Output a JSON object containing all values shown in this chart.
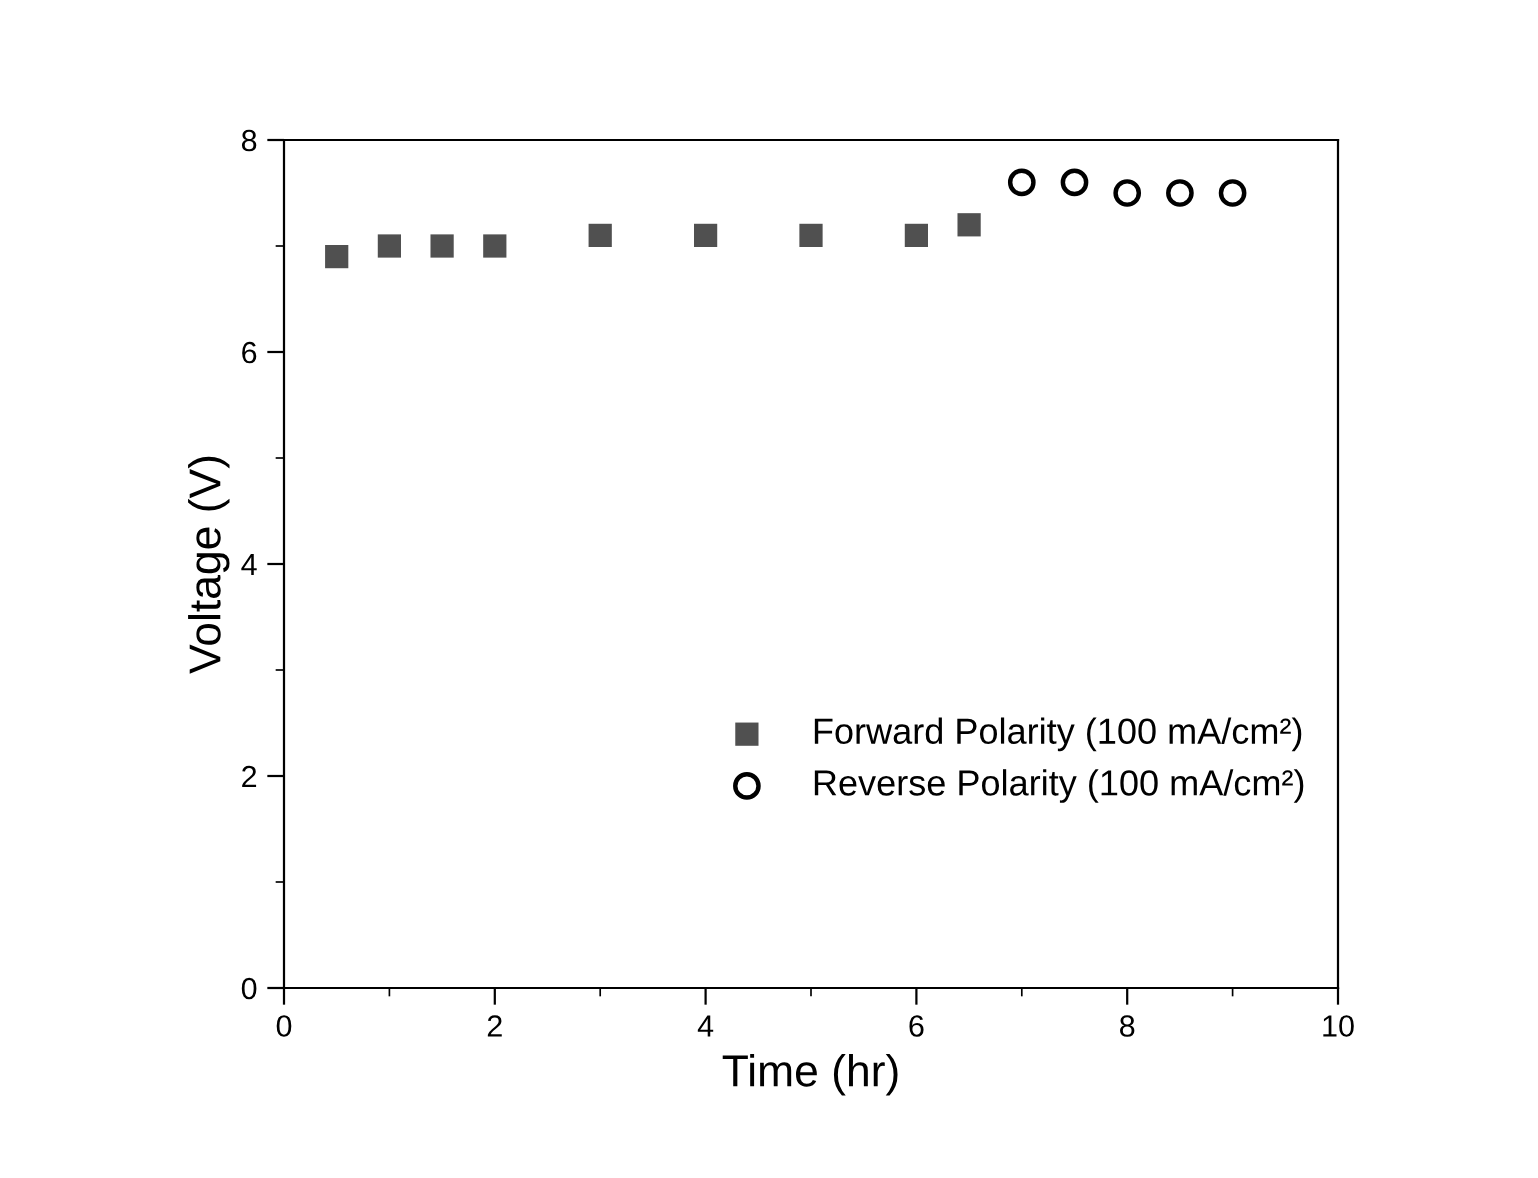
{
  "chart_data": {
    "type": "scatter",
    "xlabel": "Time (hr)",
    "ylabel": "Voltage (V)",
    "xlim": [
      0,
      10
    ],
    "ylim": [
      0,
      8
    ],
    "xticks": [
      0,
      2,
      4,
      6,
      8,
      10
    ],
    "yticks": [
      0,
      2,
      4,
      6,
      8
    ],
    "grid": false,
    "legend": "bottom right",
    "series": [
      {
        "name": "Forward Polarity (100 mA/cm²)",
        "color": "#505050",
        "marker": "square",
        "x": [
          0.5,
          1,
          1.5,
          2,
          3,
          4,
          5,
          6,
          6.5
        ],
        "values": [
          6.9,
          7.0,
          7.0,
          7.0,
          7.1,
          7.1,
          7.1,
          7.1,
          7.2
        ]
      },
      {
        "name": "Reverse Polarity (100 mA/cm²)",
        "color": "#000000",
        "marker": "circle",
        "x": [
          7,
          7.5,
          8,
          8.5,
          9
        ],
        "values": [
          7.6,
          7.6,
          7.5,
          7.5,
          7.5
        ]
      }
    ]
  }
}
